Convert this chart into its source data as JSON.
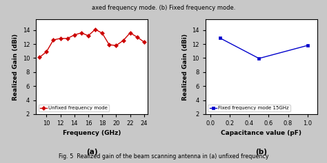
{
  "left": {
    "x": [
      9,
      10,
      11,
      12,
      13,
      14,
      15,
      16,
      17,
      18,
      19,
      20,
      21,
      22,
      23,
      24
    ],
    "y": [
      10.1,
      10.9,
      12.6,
      12.8,
      12.8,
      13.3,
      13.6,
      13.2,
      14.1,
      13.55,
      11.9,
      11.8,
      12.5,
      13.6,
      13.0,
      12.3
    ],
    "color": "#cc0000",
    "marker": "D",
    "label": "Unfixed frequency mode",
    "xlabel": "Frequency (GHz)",
    "ylabel": "Realized Gain (dBi)",
    "xlim": [
      8.5,
      24.5
    ],
    "ylim": [
      2,
      15.5
    ],
    "xticks": [
      10,
      12,
      14,
      16,
      18,
      20,
      22,
      24
    ],
    "yticks": [
      2,
      4,
      6,
      8,
      10,
      12,
      14
    ],
    "sublabel": "(a)"
  },
  "right": {
    "x": [
      0.1,
      0.5,
      1.0
    ],
    "y": [
      12.85,
      9.95,
      11.8
    ],
    "color": "#0000cc",
    "marker": "s",
    "label": "Fixed frequency mode 15GHz",
    "xlabel": "Capacitance value (pF)",
    "ylabel": "Realized Gain (dBi)",
    "xlim": [
      -0.05,
      1.1
    ],
    "ylim": [
      2,
      15.5
    ],
    "xticks": [
      0.0,
      0.2,
      0.4,
      0.6,
      0.8,
      1.0
    ],
    "yticks": [
      2,
      4,
      6,
      8,
      10,
      12,
      14
    ],
    "sublabel": "(b)"
  },
  "top_text": "axed frequency mode. (b) Fixed frequency mode.",
  "bottom_text": "Fig. 5  Realized gain of the beam scanning antenna in (a) unfixed frequency",
  "bg_color": "#c8c8c8",
  "plot_bg": "#ffffff"
}
